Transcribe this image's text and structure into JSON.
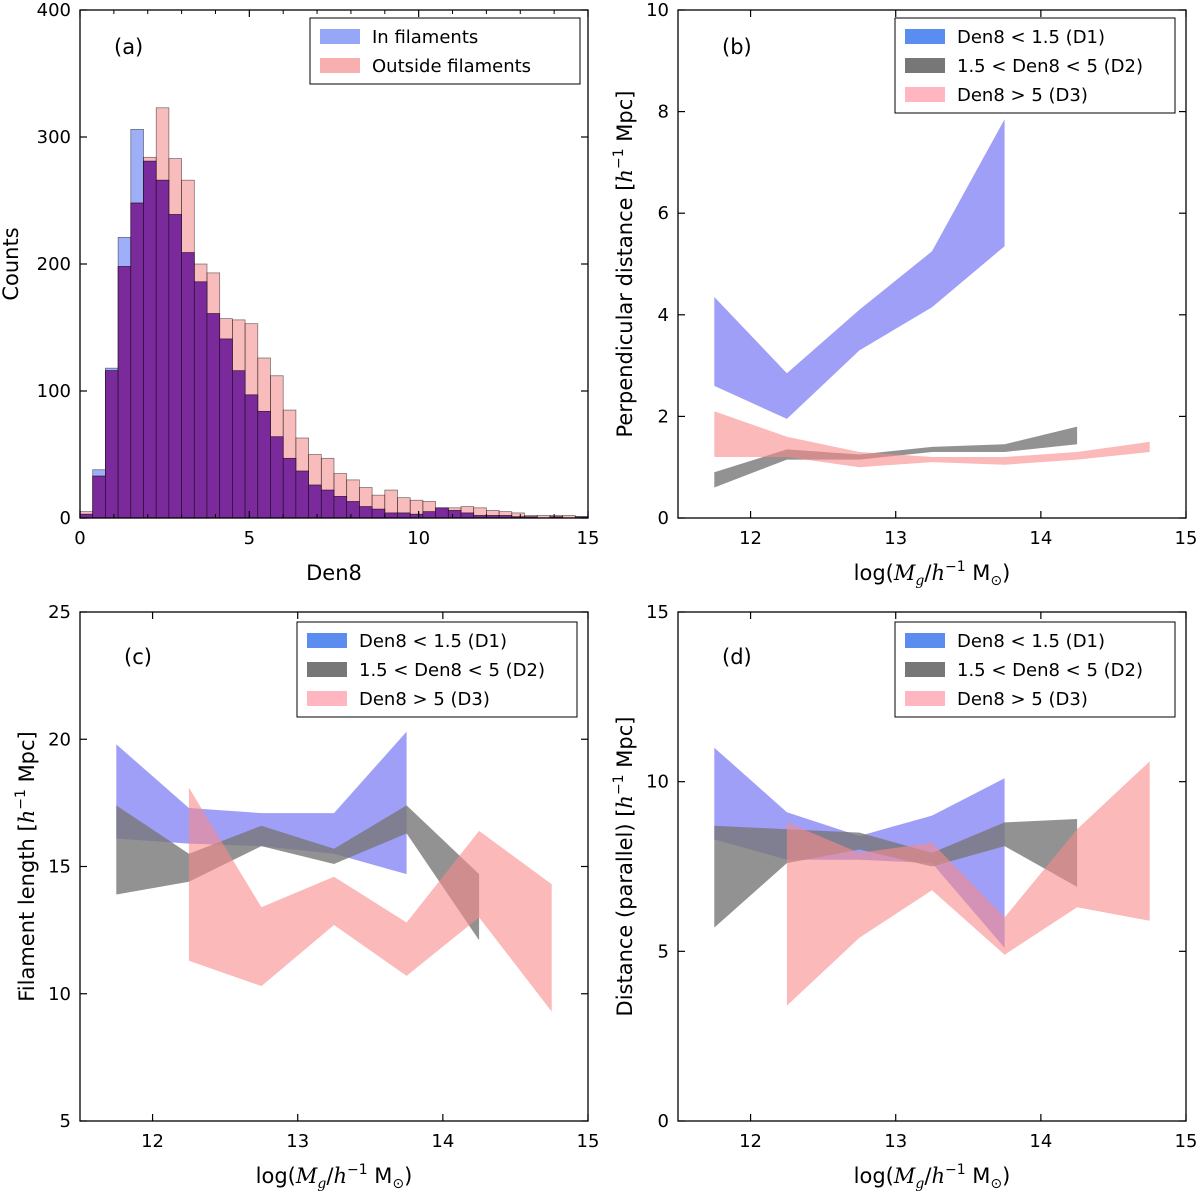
{
  "chart_data": [
    {
      "panel_label": "(a)",
      "type": "bar",
      "subtype": "histogram",
      "xlabel": "Den8",
      "ylabel": "Counts",
      "xlim": [
        0,
        15
      ],
      "ylim": [
        0,
        400
      ],
      "xticks": [
        0,
        5,
        10,
        15
      ],
      "yticks": [
        0,
        100,
        200,
        300,
        400
      ],
      "bin_width": 0.375,
      "legend_position": "top-right",
      "series": [
        {
          "name": "In filaments",
          "legend_label": "In filaments",
          "color": "#4f6df0",
          "opacity": 0.55,
          "values": [
            3,
            38,
            118,
            221,
            306,
            281,
            266,
            239,
            209,
            186,
            161,
            141,
            116,
            97,
            84,
            64,
            47,
            37,
            26,
            22,
            17,
            13,
            9,
            7,
            4,
            4,
            3,
            5,
            8,
            6,
            4,
            2,
            2,
            2,
            1,
            1,
            0,
            1,
            0,
            1
          ]
        },
        {
          "name": "Outside filaments",
          "legend_label": "Outside filaments",
          "color": "#f47a7a",
          "opacity": 0.5,
          "values": [
            5,
            33,
            116,
            198,
            248,
            284,
            323,
            283,
            266,
            200,
            193,
            157,
            156,
            153,
            126,
            112,
            85,
            63,
            50,
            47,
            35,
            30,
            24,
            18,
            22,
            16,
            14,
            13,
            8,
            8,
            9,
            8,
            6,
            5,
            4,
            2,
            2,
            2,
            2,
            1
          ]
        }
      ],
      "overlap_color": "#7a2a9a"
    },
    {
      "panel_label": "(b)",
      "type": "area",
      "xlabel": "log(M_g/h^-1 M_sun)",
      "xlabel_parts": {
        "pre": "log(",
        "M": "M",
        "sub": "g",
        "slash": "/",
        "h": "h",
        "sup": "−1",
        "unit": " M",
        "sun": "⊙",
        "post": ")"
      },
      "ylabel": "Perpendicular distance [h^-1 Mpc]",
      "ylabel_parts": {
        "pre": "Perpendicular distance [",
        "h": "h",
        "sup": "−1",
        "post": " Mpc]"
      },
      "xlim": [
        11.5,
        15
      ],
      "ylim": [
        0,
        10
      ],
      "xticks": [
        12,
        13,
        14,
        15
      ],
      "yticks": [
        0,
        2,
        4,
        6,
        8,
        10
      ],
      "legend_position": "top-right",
      "series": [
        {
          "name": "D1",
          "legend_label": "Den8 < 1.5 (D1)",
          "legend_color": "#5b8cf0",
          "color": "#6b6bf5",
          "opacity": 0.65,
          "x": [
            11.75,
            12.25,
            12.75,
            13.25,
            13.75
          ],
          "lower": [
            2.6,
            1.95,
            3.3,
            4.15,
            5.35
          ],
          "upper": [
            4.35,
            2.85,
            4.1,
            5.25,
            7.85
          ]
        },
        {
          "name": "D2",
          "legend_label": "1.5 < Den8 < 5 (D2)",
          "legend_color": "#777777",
          "color": "#777777",
          "opacity": 0.8,
          "x": [
            11.75,
            12.25,
            12.75,
            13.25,
            13.75,
            14.25
          ],
          "lower": [
            0.6,
            1.15,
            1.15,
            1.3,
            1.3,
            1.45
          ],
          "upper": [
            0.9,
            1.35,
            1.25,
            1.4,
            1.45,
            1.8
          ]
        },
        {
          "name": "D3",
          "legend_label": "Den8 > 5 (D3)",
          "legend_color": "#ffb6c1",
          "color": "#f88a8a",
          "opacity": 0.6,
          "x": [
            11.75,
            12.25,
            12.75,
            13.25,
            13.75,
            14.25,
            14.75
          ],
          "lower": [
            1.2,
            1.2,
            1.0,
            1.1,
            1.05,
            1.15,
            1.3
          ],
          "upper": [
            2.1,
            1.6,
            1.3,
            1.2,
            1.2,
            1.3,
            1.5
          ]
        }
      ]
    },
    {
      "panel_label": "(c)",
      "type": "area",
      "xlabel": "log(M_g/h^-1 M_sun)",
      "xlabel_parts": {
        "pre": "log(",
        "M": "M",
        "sub": "g",
        "slash": "/",
        "h": "h",
        "sup": "−1",
        "unit": " M",
        "sun": "⊙",
        "post": ")"
      },
      "ylabel": "Filament length [h^-1 Mpc]",
      "ylabel_parts": {
        "pre": "Filament length [",
        "h": "h",
        "sup": "−1",
        "post": " Mpc]"
      },
      "xlim": [
        11.5,
        15
      ],
      "ylim": [
        5,
        25
      ],
      "xticks": [
        12,
        13,
        14,
        15
      ],
      "yticks": [
        5,
        10,
        15,
        20,
        25
      ],
      "legend_position": "top-right",
      "series": [
        {
          "name": "D1",
          "legend_label": "Den8 < 1.5 (D1)",
          "legend_color": "#5b8cf0",
          "color": "#6b6bf5",
          "opacity": 0.65,
          "x": [
            11.75,
            12.25,
            12.75,
            13.25,
            13.75
          ],
          "lower": [
            16.1,
            15.9,
            15.8,
            15.5,
            14.7
          ],
          "upper": [
            19.8,
            17.3,
            17.1,
            17.1,
            20.3
          ]
        },
        {
          "name": "D2",
          "legend_label": "1.5 < Den8 < 5 (D2)",
          "legend_color": "#777777",
          "color": "#777777",
          "opacity": 0.8,
          "x": [
            11.75,
            12.25,
            12.75,
            13.25,
            13.75,
            14.25
          ],
          "lower": [
            13.9,
            14.4,
            15.8,
            15.1,
            16.3,
            12.1
          ],
          "upper": [
            17.4,
            15.5,
            16.6,
            15.7,
            17.4,
            14.7
          ]
        },
        {
          "name": "D3",
          "legend_label": "Den8 > 5 (D3)",
          "legend_color": "#ffb6c1",
          "color": "#f88a8a",
          "opacity": 0.6,
          "x": [
            12.25,
            12.75,
            13.25,
            13.75,
            14.25,
            14.75
          ],
          "lower": [
            11.3,
            10.3,
            12.7,
            10.7,
            13.0,
            9.3
          ],
          "upper": [
            18.1,
            13.4,
            14.6,
            12.8,
            16.4,
            14.3
          ]
        }
      ]
    },
    {
      "panel_label": "(d)",
      "type": "area",
      "xlabel": "log(M_g/h^-1 M_sun)",
      "xlabel_parts": {
        "pre": "log(",
        "M": "M",
        "sub": "g",
        "slash": "/",
        "h": "h",
        "sup": "−1",
        "unit": " M",
        "sun": "⊙",
        "post": ")"
      },
      "ylabel": "Distance (parallel) [h^-1 Mpc]",
      "ylabel_parts": {
        "pre": "Distance (parallel) [",
        "h": "h",
        "sup": "−1",
        "post": " Mpc]"
      },
      "xlim": [
        11.5,
        15
      ],
      "ylim": [
        0,
        15
      ],
      "xticks": [
        12,
        13,
        14,
        15
      ],
      "yticks": [
        0,
        5,
        10,
        15
      ],
      "legend_position": "top-right",
      "series": [
        {
          "name": "D1",
          "legend_label": "Den8 < 1.5 (D1)",
          "legend_color": "#5b8cf0",
          "color": "#6b6bf5",
          "opacity": 0.65,
          "x": [
            11.75,
            12.25,
            12.75,
            13.25,
            13.75
          ],
          "lower": [
            8.3,
            7.7,
            7.7,
            7.6,
            5.1
          ],
          "upper": [
            11.0,
            9.1,
            8.4,
            9.0,
            10.1
          ]
        },
        {
          "name": "D2",
          "legend_label": "1.5 < Den8 < 5 (D2)",
          "legend_color": "#777777",
          "color": "#777777",
          "opacity": 0.8,
          "x": [
            11.75,
            12.25,
            12.75,
            13.25,
            13.75,
            14.25
          ],
          "lower": [
            5.7,
            7.6,
            8.0,
            7.5,
            8.1,
            6.9
          ],
          "upper": [
            8.7,
            8.6,
            8.5,
            7.9,
            8.8,
            8.9
          ]
        },
        {
          "name": "D3",
          "legend_label": "Den8 > 5 (D3)",
          "legend_color": "#ffb6c1",
          "color": "#f88a8a",
          "opacity": 0.6,
          "x": [
            12.25,
            12.75,
            13.25,
            13.75,
            14.25,
            14.75
          ],
          "lower": [
            3.4,
            5.4,
            6.8,
            4.9,
            6.3,
            5.9
          ],
          "upper": [
            8.8,
            7.9,
            8.2,
            6.0,
            8.6,
            10.6
          ]
        }
      ]
    }
  ]
}
